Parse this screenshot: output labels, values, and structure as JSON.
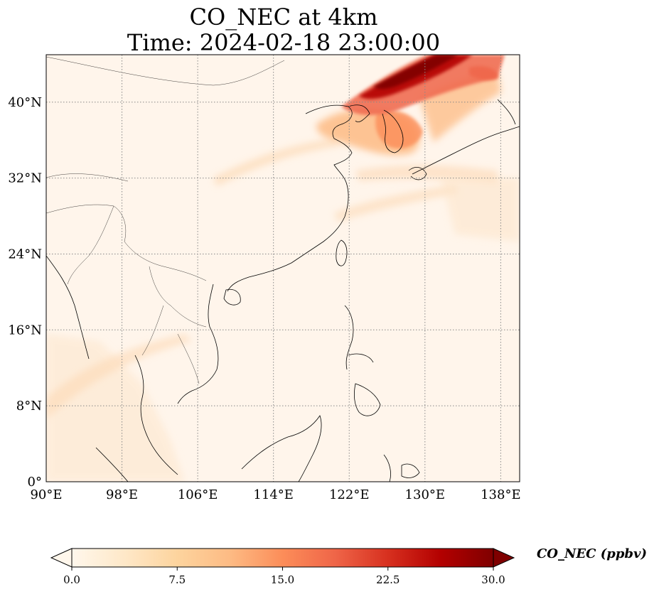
{
  "title_line1": "CO_NEC at 4km",
  "title_line2": "Time: 2024-02-18 23:00:00",
  "map": {
    "lon_range": [
      90,
      140
    ],
    "lat_range": [
      0,
      45
    ],
    "lon_ticks": [
      {
        "value": 90,
        "label": "90°E"
      },
      {
        "value": 98,
        "label": "98°E"
      },
      {
        "value": 106,
        "label": "106°E"
      },
      {
        "value": 114,
        "label": "114°E"
      },
      {
        "value": 122,
        "label": "122°E"
      },
      {
        "value": 130,
        "label": "130°E"
      },
      {
        "value": 138,
        "label": "138°E"
      }
    ],
    "lat_ticks": [
      {
        "value": 0,
        "label": "0°"
      },
      {
        "value": 8,
        "label": "8°N"
      },
      {
        "value": 16,
        "label": "16°N"
      },
      {
        "value": 24,
        "label": "24°N"
      },
      {
        "value": 32,
        "label": "32°N"
      },
      {
        "value": 40,
        "label": "40°N"
      }
    ],
    "gridlines": true,
    "colormap": "OrRd",
    "colors": {
      "background": "#fff5eb",
      "coast": "#000000",
      "grid": "#888888",
      "cmap_stops": [
        "#fff7ec",
        "#fee8c8",
        "#fdd49e",
        "#fdbb84",
        "#fc8d59",
        "#ef6548",
        "#d7301f",
        "#b30000",
        "#7f0000"
      ]
    }
  },
  "colorbar": {
    "label": "CO_NEC (ppbv)",
    "min": 0,
    "max": 30,
    "ticks": [
      {
        "value": 0,
        "label": "0.0"
      },
      {
        "value": 7.5,
        "label": "7.5"
      },
      {
        "value": 15,
        "label": "15.0"
      },
      {
        "value": 22.5,
        "label": "22.5"
      },
      {
        "value": 30,
        "label": "30.0"
      }
    ],
    "extend": "both"
  }
}
